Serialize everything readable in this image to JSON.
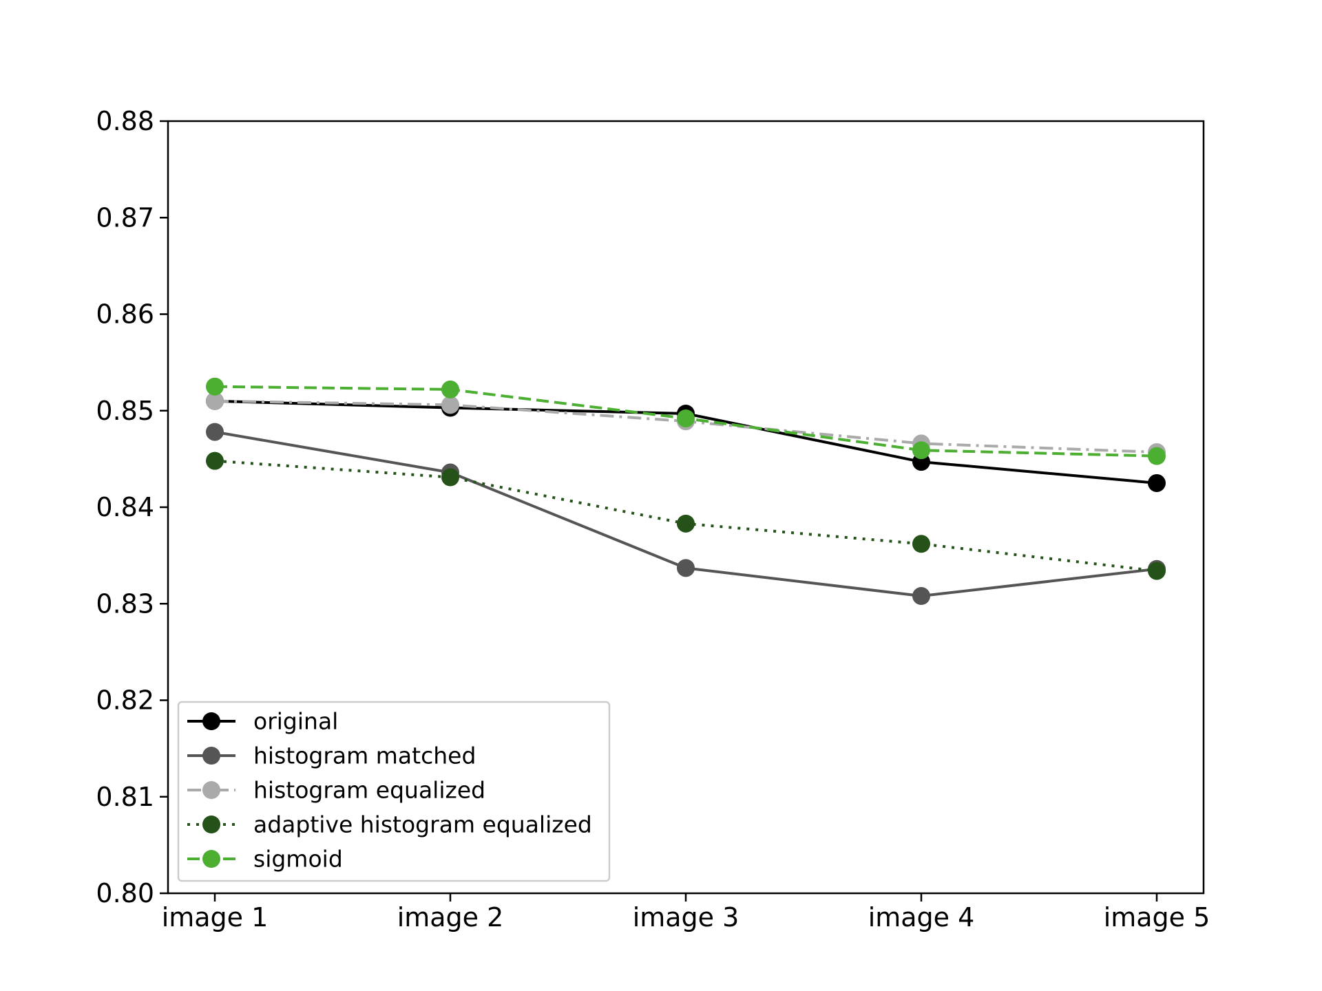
{
  "chart_data": {
    "type": "line",
    "title": "",
    "xlabel": "",
    "ylabel": "",
    "categories": [
      "image 1",
      "image 2",
      "image 3",
      "image 4",
      "image 5"
    ],
    "ylim": [
      0.8,
      0.88
    ],
    "yticks": [
      "0.80",
      "0.81",
      "0.82",
      "0.83",
      "0.84",
      "0.85",
      "0.86",
      "0.87",
      "0.88"
    ],
    "grid": false,
    "legend_position": "lower-left",
    "series": [
      {
        "name": "original",
        "color": "#000000",
        "line_style": "solid",
        "values": [
          0.851,
          0.8503,
          0.8497,
          0.8447,
          0.8425
        ]
      },
      {
        "name": "histogram matched",
        "color": "#555555",
        "line_style": "solid",
        "values": [
          0.8478,
          0.8436,
          0.8337,
          0.8308,
          0.8336
        ]
      },
      {
        "name": "histogram equalized",
        "color": "#aaaaaa",
        "line_style": "dashdot",
        "values": [
          0.851,
          0.8506,
          0.8489,
          0.8466,
          0.8457
        ]
      },
      {
        "name": "adaptive histogram equalized",
        "color": "#245218",
        "line_style": "dotted",
        "values": [
          0.8448,
          0.8431,
          0.8383,
          0.8362,
          0.8334
        ]
      },
      {
        "name": "sigmoid",
        "color": "#4caf32",
        "line_style": "dashed",
        "values": [
          0.8525,
          0.8522,
          0.8492,
          0.8459,
          0.8453
        ]
      }
    ]
  }
}
